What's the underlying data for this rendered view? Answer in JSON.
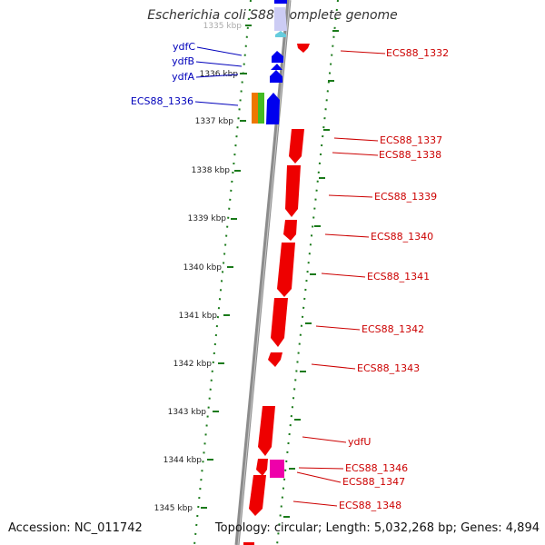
{
  "title": "Escherichia coli S88, complete genome",
  "footer": {
    "accession": "Accession: NC_011742",
    "stats": "Topology: circular; Length: 5,032,268 bp; Genes: 4,894"
  },
  "colors": {
    "backbone": "#8c8c8c",
    "tick_green": "#1a7a1a",
    "forward_gene": "#0000ee",
    "reverse_gene": "#ee0000",
    "label_blue": "#0000bb",
    "label_red": "#cc0000"
  },
  "scale_labels": [
    "1335 kbp",
    "1336 kbp",
    "1337 kbp",
    "1338 kbp",
    "1339 kbp",
    "1340 kbp",
    "1341 kbp",
    "1342 kbp",
    "1343 kbp",
    "1344 kbp",
    "1345 kbp"
  ],
  "left_gene_labels": [
    "ydfC",
    "ydfB",
    "ydfA",
    "ECS88_1336"
  ],
  "right_gene_labels": [
    "ECS88_1332",
    "ECS88_1337",
    "ECS88_1338",
    "ECS88_1339",
    "ECS88_1340",
    "ECS88_1341",
    "ECS88_1342",
    "ECS88_1343",
    "ydfU",
    "ECS88_1346",
    "ECS88_1347",
    "ECS88_1348"
  ]
}
